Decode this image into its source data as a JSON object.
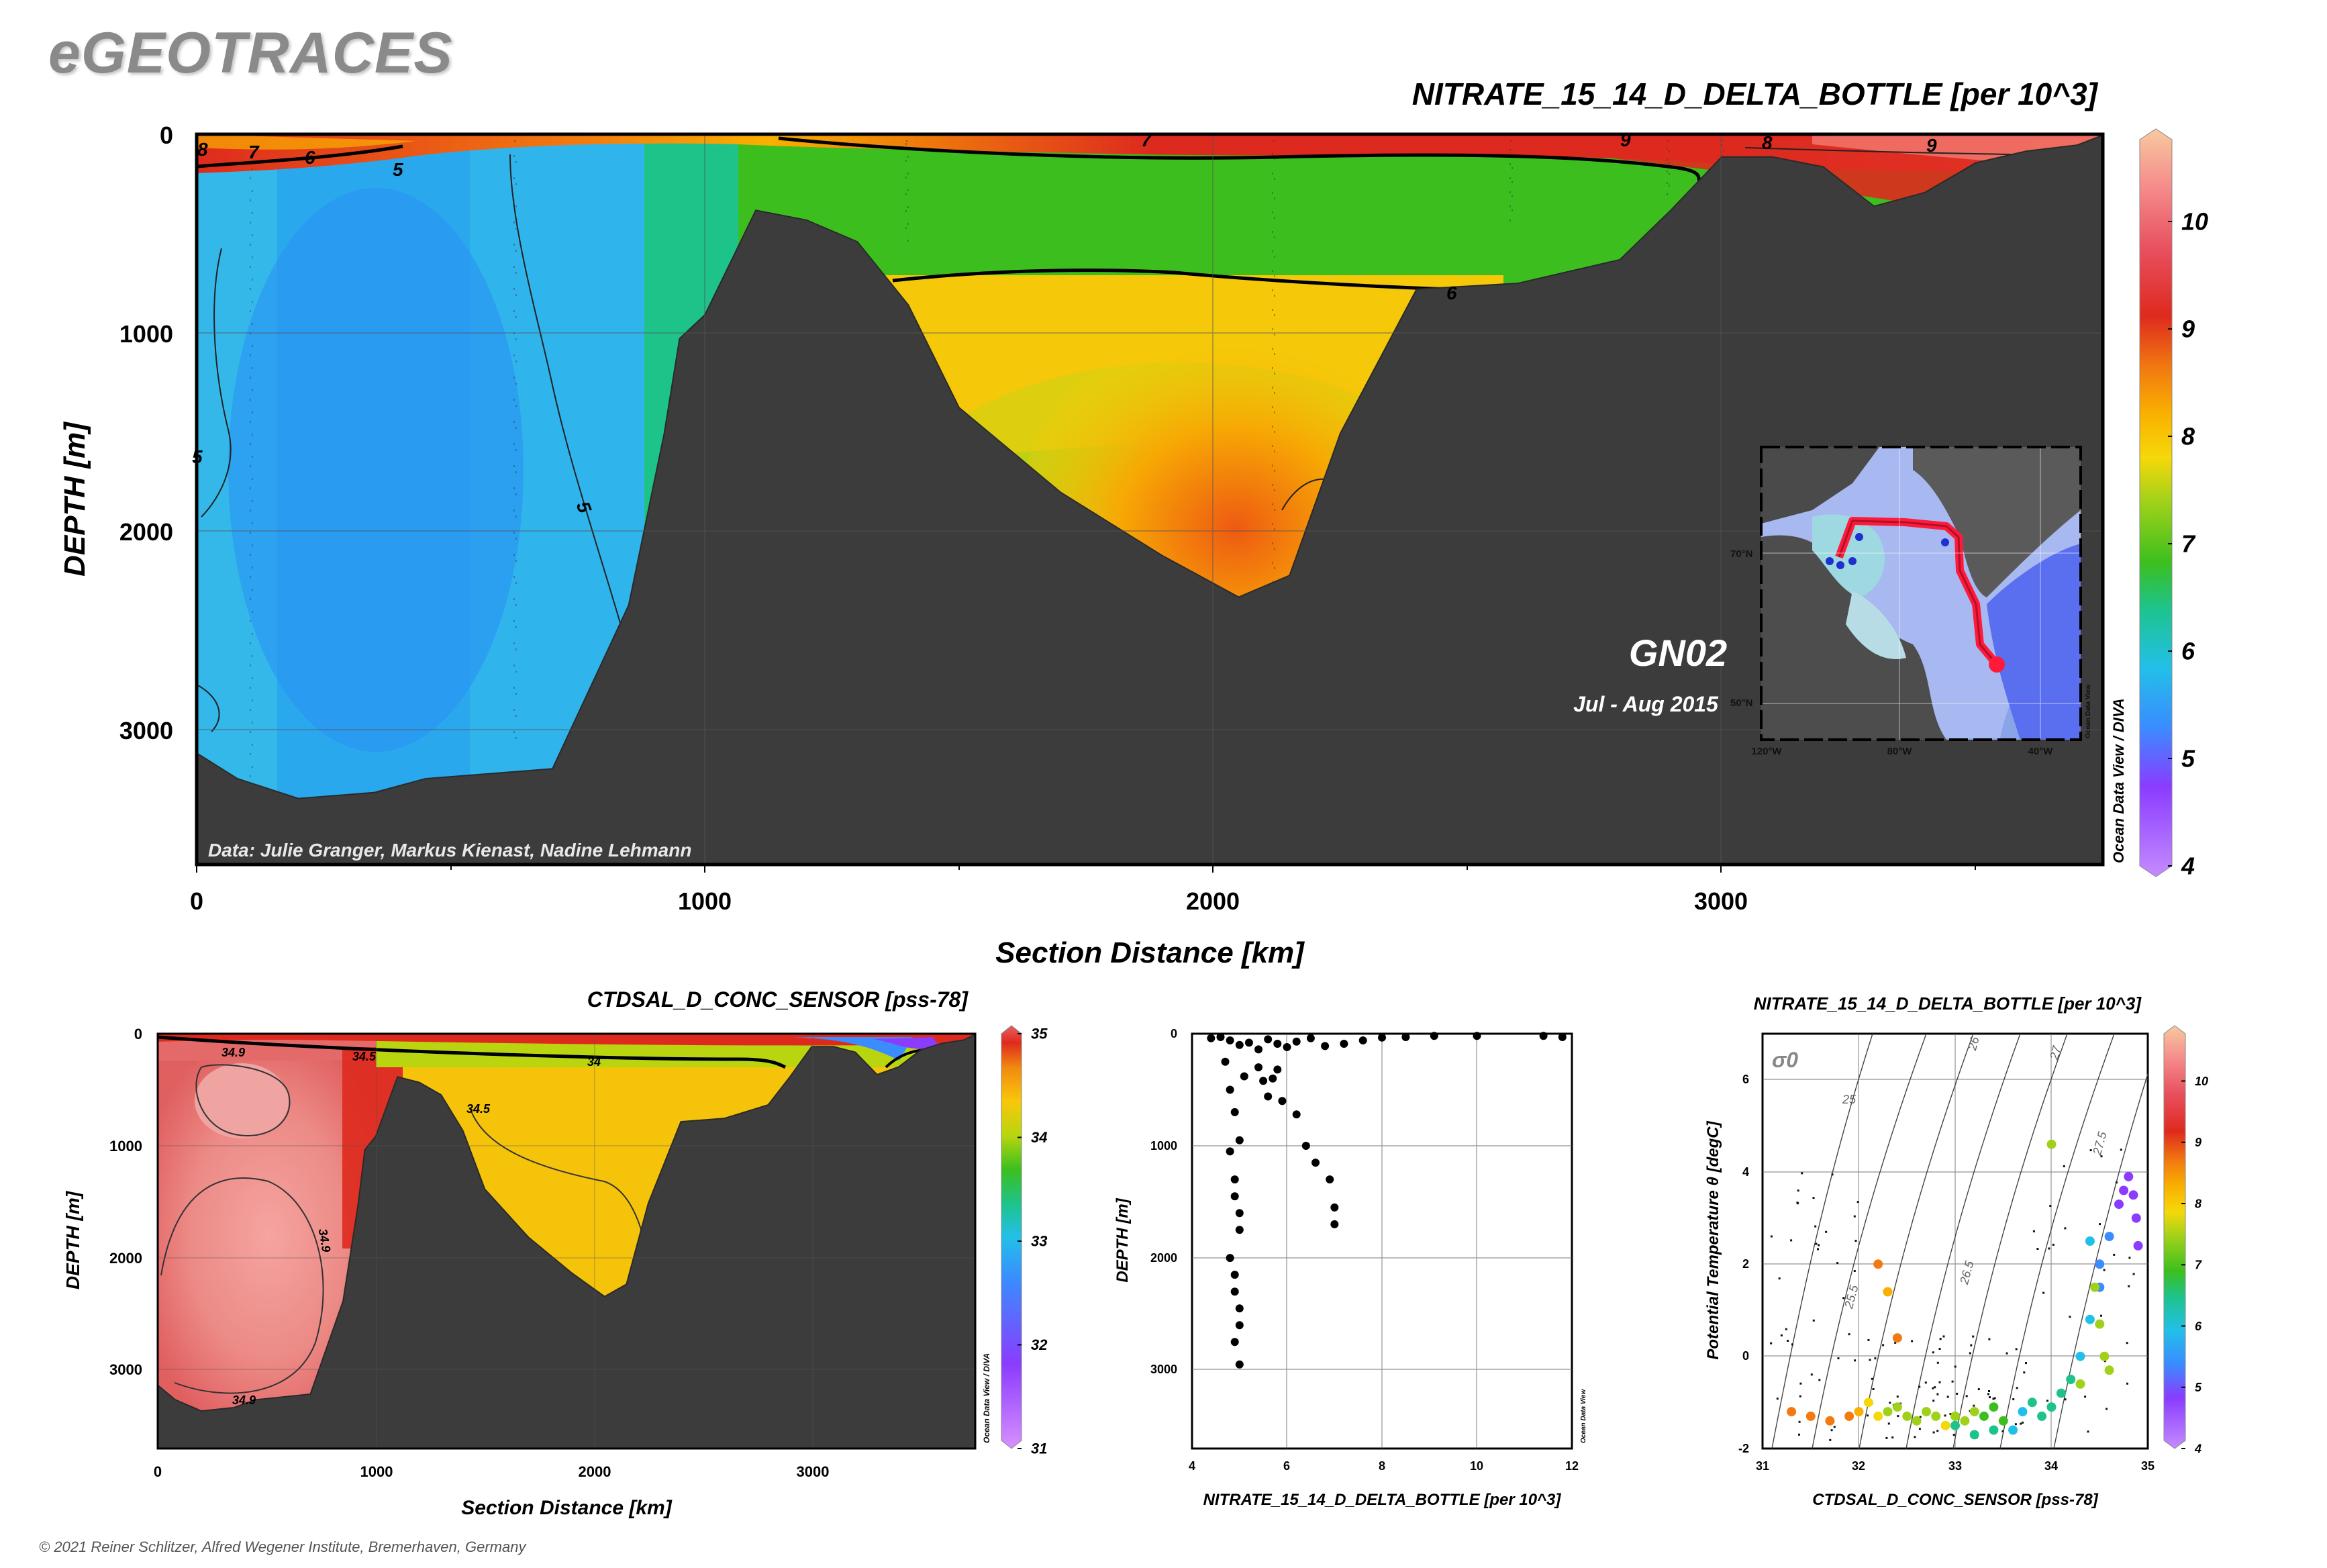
{
  "brand": "eGEOTRACES",
  "copyright": "© 2021 Reiner Schlitzer, Alfred Wegener Institute, Bremerhaven, Germany",
  "colors": {
    "seafloor": "#3c3c3c",
    "colorbar_nitrate": [
      "#c58cff",
      "#8a3cff",
      "#3a8cff",
      "#22c0e8",
      "#1ec38a",
      "#3cbf1e",
      "#9fd11a",
      "#f5d80a",
      "#f9b000",
      "#f27a10",
      "#de2a1e",
      "#e85060",
      "#f58a8a",
      "#f8c9a0"
    ],
    "colorbar_salinity": [
      "#d890ff",
      "#8a3cff",
      "#3a8cff",
      "#22c0e8",
      "#1ec38a",
      "#3cbf1e",
      "#b8d510",
      "#f7c80a",
      "#f28a10",
      "#de2a1e",
      "#e86060"
    ]
  },
  "main_section": {
    "title": "NITRATE_15_14_D_DELTA_BOTTLE [per 10^3]",
    "xlabel": "Section Distance [km]",
    "ylabel": "DEPTH [m]",
    "xticks": [
      "0",
      "1000",
      "2000",
      "3000"
    ],
    "yticks": [
      "0",
      "1000",
      "2000",
      "3000"
    ],
    "cruise": "GN02",
    "dates": "Jul - Aug 2015",
    "credit": "Data: Julie Granger, Markus Kienast, Nadine Lehmann",
    "watermark": "Ocean Data View / DIVA",
    "colorbar_ticks": [
      "4",
      "5",
      "6",
      "7",
      "8",
      "9",
      "10"
    ],
    "contour_labels": [
      "8",
      "7",
      "6",
      "5",
      "5",
      "5",
      "6",
      "7",
      "9",
      "8",
      "9"
    ],
    "map": {
      "lat_labels": [
        "70°N",
        "50°N"
      ],
      "lon_labels": [
        "120°W",
        "80°W",
        "40°W"
      ],
      "watermark": "Ocean Data View"
    }
  },
  "salinity_section": {
    "title": "CTDSAL_D_CONC_SENSOR [pss-78]",
    "xlabel": "Section Distance [km]",
    "ylabel": "DEPTH [m]",
    "xticks": [
      "0",
      "1000",
      "2000",
      "3000"
    ],
    "yticks": [
      "0",
      "1000",
      "2000",
      "3000"
    ],
    "colorbar_ticks": [
      "31",
      "32",
      "33",
      "34",
      "35"
    ],
    "contour_labels": [
      "34.9",
      "34.5",
      "34",
      "34.5",
      "34.9",
      "34.9"
    ],
    "watermark": "Ocean Data View / DIVA"
  },
  "profile_plot": {
    "xlabel": "NITRATE_15_14_D_DELTA_BOTTLE [per 10^3]",
    "ylabel": "DEPTH [m]",
    "xticks": [
      "4",
      "6",
      "8",
      "10",
      "12"
    ],
    "yticks": [
      "0",
      "1000",
      "2000",
      "3000"
    ],
    "watermark": "Ocean Data View"
  },
  "ts_plot": {
    "title": "NITRATE_15_14_D_DELTA_BOTTLE [per 10^3]",
    "xlabel": "CTDSAL_D_CONC_SENSOR [pss-78]",
    "ylabel": "Potential Temperature θ [degC]",
    "sigma_label": "σ0",
    "xticks": [
      "31",
      "32",
      "33",
      "34",
      "35"
    ],
    "yticks": [
      "-2",
      "0",
      "2",
      "4",
      "6"
    ],
    "isopycnal_labels": [
      "25",
      "25.5",
      "26",
      "26.5",
      "27",
      "27.5"
    ],
    "colorbar_ticks": [
      "4",
      "5",
      "6",
      "7",
      "8",
      "9",
      "10"
    ]
  },
  "chart_data": [
    {
      "type": "heatmap",
      "title": "NITRATE_15_14_D_DELTA_BOTTLE [per 10^3]",
      "xlabel": "Section Distance [km]",
      "ylabel": "DEPTH [m]",
      "xlim": [
        0,
        3750
      ],
      "ylim": [
        3700,
        0
      ],
      "zlim": [
        4,
        10
      ],
      "bathymetry": {
        "x": [
          0,
          80,
          200,
          350,
          450,
          700,
          850,
          920,
          950,
          1000,
          1100,
          1200,
          1300,
          1400,
          1500,
          1700,
          1900,
          2050,
          2150,
          2250,
          2400,
          2600,
          2800,
          2900,
          3000,
          3100,
          3200,
          3300,
          3400,
          3500,
          3600,
          3700,
          3750
        ],
        "depth": [
          3150,
          3250,
          3380,
          3320,
          3280,
          3200,
          2400,
          1500,
          1050,
          900,
          400,
          420,
          560,
          850,
          1400,
          1800,
          2150,
          2330,
          2250,
          1500,
          800,
          740,
          650,
          370,
          130,
          100,
          180,
          350,
          310,
          130,
          100,
          40,
          20
        ]
      }
    },
    {
      "type": "heatmap",
      "title": "CTDSAL_D_CONC_SENSOR [pss-78]",
      "xlabel": "Section Distance [km]",
      "ylabel": "DEPTH [m]",
      "xlim": [
        0,
        3750
      ],
      "ylim": [
        3700,
        0
      ],
      "zlim": [
        31,
        35
      ]
    },
    {
      "type": "scatter",
      "xlabel": "NITRATE_15_14_D_DELTA_BOTTLE [per 10^3]",
      "ylabel": "DEPTH [m]",
      "xlim": [
        4,
        12
      ],
      "ylim": [
        3700,
        0
      ],
      "x": [
        4.4,
        4.6,
        4.8,
        5.0,
        5.2,
        5.4,
        5.6,
        5.8,
        6.0,
        6.2,
        6.5,
        6.8,
        7.2,
        7.6,
        8.0,
        8.5,
        9.1,
        10.0,
        11.4,
        11.8,
        4.7,
        4.8,
        4.9,
        5.0,
        5.1,
        5.4,
        5.5,
        5.6,
        5.7,
        5.8,
        5.9,
        6.2,
        6.4,
        6.6,
        6.9,
        7.0,
        7.0,
        4.8,
        4.9,
        4.9,
        5.0,
        5.0,
        4.8,
        4.9,
        4.9,
        5.0,
        5.0,
        4.9,
        5.0
      ],
      "y": [
        40,
        30,
        60,
        100,
        80,
        140,
        50,
        90,
        120,
        70,
        40,
        110,
        90,
        60,
        35,
        30,
        20,
        20,
        20,
        30,
        250,
        500,
        700,
        950,
        380,
        300,
        420,
        560,
        400,
        320,
        600,
        720,
        1000,
        1150,
        1300,
        1550,
        1700,
        1050,
        1300,
        1450,
        1600,
        1750,
        2000,
        2150,
        2300,
        2450,
        2600,
        2750,
        2950
      ]
    },
    {
      "type": "scatter",
      "title": "NITRATE_15_14_D_DELTA_BOTTLE [per 10^3]",
      "xlabel": "CTDSAL_D_CONC_SENSOR [pss-78]",
      "ylabel": "Potential Temperature θ [degC]",
      "xlim": [
        31,
        35
      ],
      "ylim": [
        -2,
        7
      ],
      "zlim": [
        4,
        10
      ],
      "x": [
        31.3,
        31.5,
        31.7,
        31.9,
        32.0,
        32.1,
        32.2,
        32.3,
        32.4,
        32.5,
        32.6,
        32.7,
        32.8,
        32.9,
        33.0,
        33.1,
        33.2,
        33.3,
        33.4,
        33.5,
        33.6,
        33.7,
        33.8,
        33.9,
        34.0,
        34.1,
        34.2,
        34.3,
        34.4,
        34.5,
        34.5,
        34.6,
        34.7,
        34.75,
        34.8,
        34.85,
        34.88,
        34.9,
        33.0,
        33.2,
        33.4,
        34.0,
        34.3,
        32.2,
        32.3,
        32.4,
        34.4,
        34.45,
        34.5,
        34.55,
        34.6
      ],
      "y": [
        -1.2,
        -1.3,
        -1.4,
        -1.3,
        -1.2,
        -1.0,
        -1.3,
        -1.2,
        -1.1,
        -1.3,
        -1.4,
        -1.2,
        -1.3,
        -1.5,
        -1.3,
        -1.4,
        -1.2,
        -1.3,
        -1.1,
        -1.4,
        -1.6,
        -1.2,
        -1.0,
        -1.3,
        -1.1,
        -0.8,
        -0.5,
        0.0,
        0.8,
        1.5,
        2.0,
        2.6,
        3.3,
        3.6,
        3.9,
        3.5,
        3.0,
        2.4,
        -1.5,
        -1.7,
        -1.6,
        4.6,
        -0.6,
        2.0,
        1.4,
        0.4,
        2.5,
        1.5,
        0.7,
        0.0,
        -0.3
      ],
      "z": [
        8.5,
        8.6,
        8.4,
        8.2,
        7.8,
        7.5,
        7.2,
        7.0,
        7.0,
        6.9,
        7.0,
        7.1,
        7.0,
        7.2,
        7.1,
        7.0,
        6.8,
        6.6,
        6.5,
        6.3,
        5.6,
        5.5,
        5.8,
        6.0,
        6.2,
        6.0,
        5.8,
        5.6,
        5.4,
        5.2,
        5.0,
        4.8,
        4.5,
        4.6,
        4.5,
        4.4,
        4.5,
        4.5,
        6.0,
        5.9,
        5.8,
        7.0,
        6.8,
        8.2,
        8.0,
        8.3,
        5.4,
        6.8,
        6.9,
        7.0,
        7.0
      ]
    }
  ]
}
